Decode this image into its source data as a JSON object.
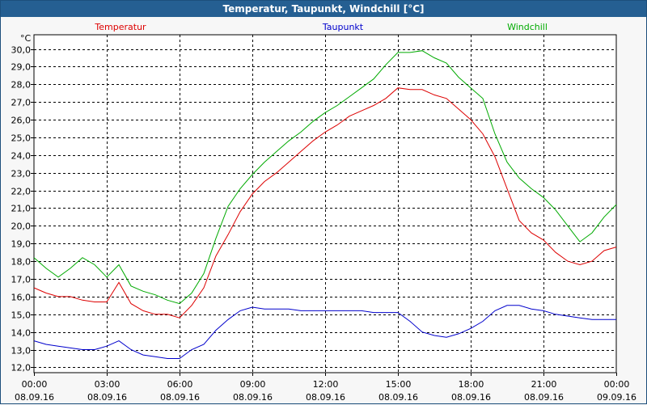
{
  "window": {
    "title": "Temperatur, Taupunkt, Windchill [°C]"
  },
  "chart_data": {
    "type": "line",
    "title": "Temperatur, Taupunkt, Windchill [°C]",
    "ylabel": "°C",
    "xlabel": "",
    "ylim": [
      11.7,
      30.8
    ],
    "xlim": [
      "08.09.16 00:00",
      "09.09.16 00:00"
    ],
    "grid": true,
    "legend": "top",
    "y_ticks": [
      "12,0",
      "13,0",
      "14,0",
      "15,0",
      "16,0",
      "17,0",
      "18,0",
      "19,0",
      "20,0",
      "21,0",
      "22,0",
      "23,0",
      "24,0",
      "25,0",
      "26,0",
      "27,0",
      "28,0",
      "29,0",
      "30,0"
    ],
    "x_ticks": [
      {
        "time": "00:00",
        "date": "08.09.16"
      },
      {
        "time": "03:00",
        "date": "08.09.16"
      },
      {
        "time": "06:00",
        "date": "08.09.16"
      },
      {
        "time": "09:00",
        "date": "08.09.16"
      },
      {
        "time": "12:00",
        "date": "08.09.16"
      },
      {
        "time": "15:00",
        "date": "08.09.16"
      },
      {
        "time": "18:00",
        "date": "08.09.16"
      },
      {
        "time": "21:00",
        "date": "08.09.16"
      },
      {
        "time": "00:00",
        "date": "09.09.16"
      }
    ],
    "x_hours": [
      0,
      0.5,
      1,
      1.5,
      2,
      2.5,
      3,
      3.5,
      4,
      4.5,
      5,
      5.5,
      6,
      6.5,
      7,
      7.5,
      8,
      8.5,
      9,
      9.5,
      10,
      10.5,
      11,
      11.5,
      12,
      12.5,
      13,
      13.5,
      14,
      14.5,
      15,
      15.5,
      16,
      16.5,
      17,
      17.5,
      18,
      18.5,
      19,
      19.5,
      20,
      20.5,
      21,
      21.5,
      22,
      22.5,
      23,
      23.5,
      24
    ],
    "series": [
      {
        "name": "Temperatur",
        "color": "#dd0000",
        "values": [
          16.5,
          16.2,
          16.0,
          16.0,
          15.8,
          15.7,
          15.7,
          16.8,
          15.6,
          15.2,
          15.0,
          15.0,
          14.8,
          15.5,
          16.5,
          18.3,
          19.5,
          20.8,
          21.8,
          22.5,
          23.0,
          23.6,
          24.2,
          24.8,
          25.3,
          25.7,
          26.2,
          26.5,
          26.8,
          27.2,
          27.8,
          27.7,
          27.7,
          27.4,
          27.2,
          26.6,
          26.0,
          25.2,
          23.9,
          22.1,
          20.3,
          19.6,
          19.2,
          18.5,
          18.0,
          17.8,
          18.0,
          18.6,
          18.8
        ]
      },
      {
        "name": "Taupunkt",
        "color": "#0000cc",
        "values": [
          13.5,
          13.3,
          13.2,
          13.1,
          13.0,
          13.0,
          13.2,
          13.5,
          13.0,
          12.7,
          12.6,
          12.5,
          12.5,
          13.0,
          13.3,
          14.1,
          14.7,
          15.2,
          15.4,
          15.3,
          15.3,
          15.3,
          15.2,
          15.2,
          15.2,
          15.2,
          15.2,
          15.2,
          15.1,
          15.1,
          15.1,
          14.6,
          14.0,
          13.8,
          13.7,
          13.9,
          14.2,
          14.6,
          15.2,
          15.5,
          15.5,
          15.3,
          15.2,
          15.0,
          14.9,
          14.8,
          14.7,
          14.7,
          14.7
        ]
      },
      {
        "name": "Windchill",
        "color": "#00aa00",
        "values": [
          18.2,
          17.6,
          17.1,
          17.6,
          18.2,
          17.8,
          17.1,
          17.8,
          16.6,
          16.3,
          16.1,
          15.8,
          15.6,
          16.2,
          17.3,
          19.3,
          21.1,
          22.1,
          22.9,
          23.6,
          24.2,
          24.8,
          25.3,
          25.9,
          26.4,
          26.8,
          27.3,
          27.8,
          28.3,
          29.1,
          29.8,
          29.8,
          29.9,
          29.5,
          29.2,
          28.4,
          27.8,
          27.2,
          25.2,
          23.6,
          22.7,
          22.1,
          21.6,
          20.9,
          20.0,
          19.1,
          19.6,
          20.5,
          21.2
        ]
      }
    ]
  }
}
